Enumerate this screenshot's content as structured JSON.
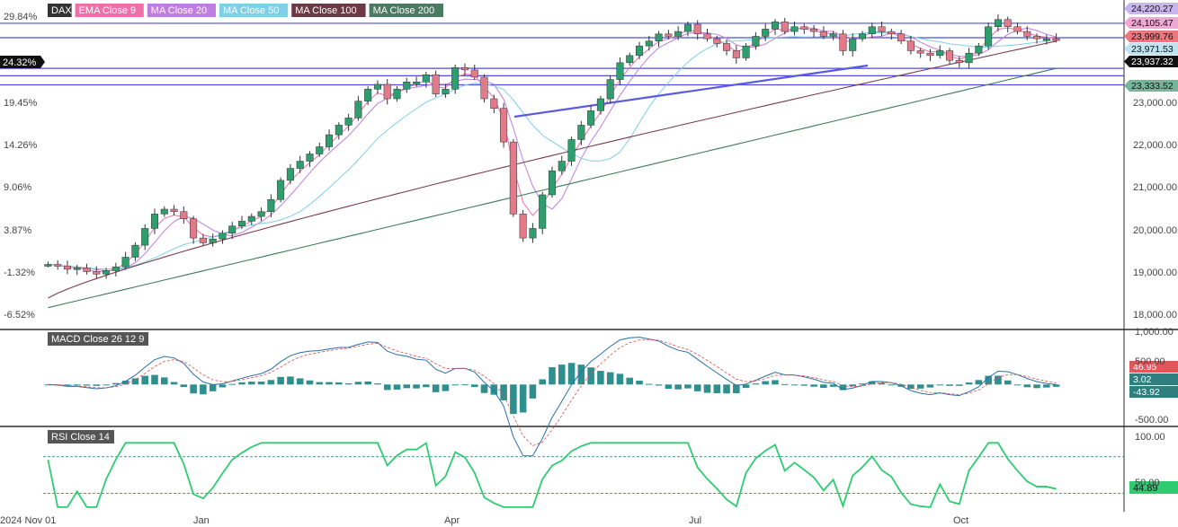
{
  "chart_data": {
    "type": "candlestick",
    "symbol": "DAX",
    "x_axis": {
      "labels": [
        "2024 Nov 01",
        "Jan",
        "Apr",
        "Jul",
        "Oct"
      ]
    },
    "price_panel": {
      "legend": [
        "DAX",
        "EMA Close 9",
        "MA Close 20",
        "MA Close 50",
        "MA Close 100",
        "MA Close 200"
      ],
      "legend_colors": [
        "#333333",
        "#f06fa8",
        "#c07de0",
        "#7fcfe8",
        "#7a3a4a",
        "#3a7a5a"
      ],
      "y_right_ticks": [
        "18,000.00",
        "19,000.00",
        "20,000.00",
        "21,000.00",
        "22,000.00",
        "23,000.00"
      ],
      "y_left_ticks": [
        "-6.52%",
        "-1.32%",
        "3.87%",
        "9.06%",
        "14.26%",
        "19.45%",
        "29.84%"
      ],
      "current_pct": "24.32%",
      "ylim": [
        17970,
        24700
      ],
      "horizontal_levels": [
        24271,
        23971,
        23333,
        23179,
        22990
      ],
      "badges": [
        {
          "text": "24,220.27",
          "color": "#c9b6f0"
        },
        {
          "text": "24,105.47",
          "color": "#f2a6d2"
        },
        {
          "text": "23,999.76",
          "color": "#e7797f"
        },
        {
          "text": "23,971.53",
          "color": "#bfe3f1"
        },
        {
          "text": "23,937.32",
          "color": "#111111"
        },
        {
          "text": "23,333.52",
          "color": "#74b59c"
        }
      ],
      "close_series": [
        19250,
        19220,
        19150,
        19180,
        19100,
        19050,
        19120,
        19200,
        19400,
        19650,
        20000,
        20300,
        20400,
        20350,
        20200,
        19800,
        19700,
        19780,
        19900,
        20050,
        20150,
        20250,
        20350,
        20600,
        21000,
        21250,
        21400,
        21550,
        21700,
        21950,
        22150,
        22300,
        22650,
        22900,
        23000,
        22700,
        22900,
        23050,
        23050,
        23200,
        22800,
        22900,
        23350,
        23300,
        23150,
        22700,
        22500,
        21800,
        20300,
        19800,
        20000,
        20700,
        21200,
        21400,
        21850,
        22150,
        22450,
        22700,
        23100,
        23450,
        23600,
        23800,
        23900,
        24050,
        24000,
        24100,
        24250,
        24050,
        23950,
        23850,
        23700,
        23550,
        23800,
        24000,
        24150,
        24300,
        24100,
        24200,
        24150,
        24100,
        24000,
        24050,
        23700,
        23950,
        24050,
        24200,
        24100,
        24050,
        23900,
        23700,
        23650,
        23600,
        23700,
        23500,
        23450,
        23650,
        23800,
        24200,
        24350,
        24200,
        24100,
        24000,
        23950,
        23950,
        23937
      ]
    },
    "macd_panel": {
      "label": "MACD Close 26 12 9",
      "y_ticks": [
        "1,000.00",
        "500.00",
        "-500.00"
      ],
      "ylim": [
        -750,
        1000
      ],
      "badges": [
        {
          "text": "46.95",
          "color": "#e15759"
        },
        {
          "text": "3.02",
          "color": "#2f7f7f"
        },
        {
          "text": "-43.92",
          "color": "#2f7f7f"
        }
      ]
    },
    "rsi_panel": {
      "label": "RSI Close 14",
      "y_ticks": [
        "100.00",
        "50.00"
      ],
      "ylim": [
        10,
        100
      ],
      "levels": [
        70,
        30
      ],
      "current": "44.89",
      "current_color": "#2ecc71"
    }
  }
}
